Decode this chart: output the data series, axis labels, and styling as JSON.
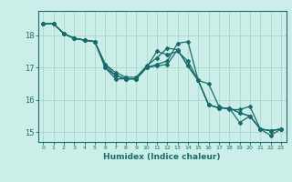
{
  "xlabel": "Humidex (Indice chaleur)",
  "bg_color": "#cceee8",
  "line_color": "#1a6b6b",
  "grid_color": "#aad4cc",
  "xlim": [
    -0.5,
    23.5
  ],
  "ylim": [
    14.7,
    18.75
  ],
  "yticks": [
    15,
    16,
    17,
    18
  ],
  "xticks": [
    0,
    1,
    2,
    3,
    4,
    5,
    6,
    7,
    8,
    9,
    10,
    11,
    12,
    13,
    14,
    15,
    16,
    17,
    18,
    19,
    20,
    21,
    22,
    23
  ],
  "series": [
    [
      18.35,
      18.35,
      18.05,
      17.9,
      17.85,
      17.8,
      17.0,
      16.75,
      16.65,
      16.65,
      17.0,
      17.05,
      17.1,
      17.55,
      17.05,
      16.6,
      16.5,
      15.8,
      15.7,
      15.7,
      15.8,
      15.1,
      14.9,
      15.1
    ],
    [
      18.35,
      18.35,
      18.05,
      17.9,
      17.85,
      17.8,
      17.0,
      16.65,
      16.65,
      16.65,
      17.0,
      17.1,
      17.2,
      17.75,
      17.8,
      16.6,
      15.85,
      15.75,
      15.75,
      15.6,
      15.5,
      15.1,
      15.05,
      15.1
    ],
    [
      18.35,
      18.35,
      18.05,
      17.9,
      17.85,
      17.8,
      17.1,
      16.75,
      16.65,
      16.65,
      17.0,
      17.5,
      17.4,
      17.5,
      17.2,
      16.6,
      15.85,
      15.75,
      15.75,
      15.3,
      15.5,
      15.1,
      15.05,
      15.1
    ],
    [
      18.35,
      18.35,
      18.05,
      17.9,
      17.85,
      17.8,
      17.1,
      16.85,
      16.7,
      16.7,
      17.05,
      17.3,
      17.6,
      17.55,
      17.05,
      16.6,
      15.85,
      15.75,
      15.75,
      15.6,
      15.5,
      15.1,
      15.05,
      15.1
    ]
  ]
}
